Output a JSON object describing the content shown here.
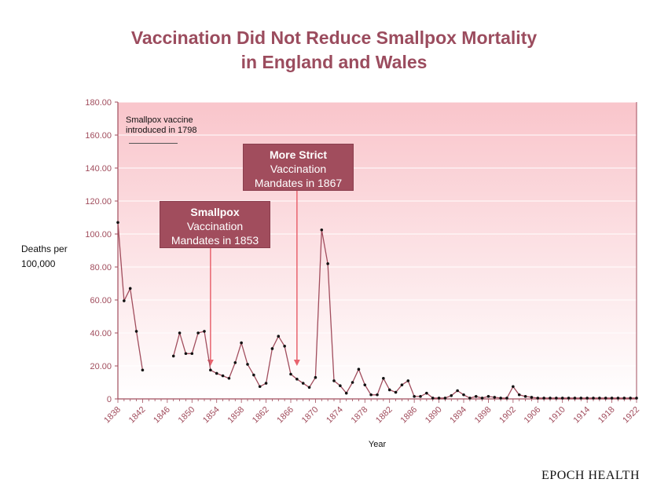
{
  "title_line1": "Vaccination Did Not Reduce Smallpox Mortality",
  "title_line2": "in England and Wales",
  "ylabel_line1": "Deaths per",
  "ylabel_line2": "100,000",
  "xlabel": "Year",
  "brand": "EPOCH HEALTH",
  "annotations": {
    "note_line1": "Smallpox vaccine",
    "note_line2": "introduced in 1798",
    "callout1_bold": "Smallpox",
    "callout1_line2": "Vaccination",
    "callout1_line3": "Mandates in 1853",
    "callout2_bold": "More Strict",
    "callout2_line2": "Vaccination",
    "callout2_line3": "Mandates in 1867"
  },
  "colors": {
    "title": "#9b4c5e",
    "line": "#a14d5d",
    "point": "#111111",
    "bg_top": "#f9c5cb",
    "bg_bottom": "#ffffff",
    "callout": "#a14d5d",
    "arrow": "#e8636e"
  },
  "chart_data": {
    "type": "line",
    "title": "Vaccination Did Not Reduce Smallpox Mortality in England and Wales",
    "xlabel": "Year",
    "ylabel": "Deaths per 100,000",
    "xlim": [
      1838,
      1922
    ],
    "ylim": [
      0,
      180
    ],
    "grid": true,
    "y_ticks": [
      "0",
      "20.00",
      "40.00",
      "60.00",
      "80.00",
      "100.00",
      "120.00",
      "140.00",
      "160.00",
      "180.00"
    ],
    "x_ticks": [
      "1838",
      "1842",
      "1846",
      "1850",
      "1854",
      "1858",
      "1862",
      "1866",
      "1870",
      "1874",
      "1878",
      "1882",
      "1886",
      "1890",
      "1894",
      "1898",
      "1902",
      "1906",
      "1910",
      "1914",
      "1918",
      "1922"
    ],
    "segments": [
      [
        [
          1838,
          107
        ],
        [
          1839,
          59.5
        ],
        [
          1840,
          67
        ],
        [
          1841,
          41
        ],
        [
          1842,
          17.5
        ]
      ],
      [
        [
          1847,
          26
        ],
        [
          1848,
          40
        ],
        [
          1849,
          27.5
        ],
        [
          1850,
          27.5
        ],
        [
          1851,
          40
        ],
        [
          1852,
          41
        ],
        [
          1853,
          17.5
        ],
        [
          1854,
          15.5
        ],
        [
          1855,
          14
        ],
        [
          1856,
          12.5
        ],
        [
          1857,
          22
        ],
        [
          1858,
          34
        ],
        [
          1859,
          21
        ],
        [
          1860,
          14.5
        ],
        [
          1861,
          7.5
        ],
        [
          1862,
          9.5
        ],
        [
          1863,
          30.5
        ],
        [
          1864,
          38
        ],
        [
          1865,
          32
        ],
        [
          1866,
          15
        ],
        [
          1867,
          12
        ],
        [
          1868,
          9.5
        ],
        [
          1869,
          7
        ],
        [
          1870,
          13
        ],
        [
          1871,
          102.5
        ],
        [
          1872,
          82
        ],
        [
          1873,
          11
        ],
        [
          1874,
          8
        ],
        [
          1875,
          3.5
        ],
        [
          1876,
          10
        ],
        [
          1877,
          18
        ],
        [
          1878,
          8.5
        ],
        [
          1879,
          2.5
        ],
        [
          1880,
          2.5
        ],
        [
          1881,
          12.5
        ],
        [
          1882,
          5.5
        ],
        [
          1883,
          4
        ],
        [
          1884,
          8.5
        ],
        [
          1885,
          11
        ],
        [
          1886,
          1.5
        ],
        [
          1887,
          1.5
        ],
        [
          1888,
          3.5
        ],
        [
          1889,
          0.5
        ],
        [
          1890,
          0.5
        ],
        [
          1891,
          0.5
        ],
        [
          1892,
          2
        ],
        [
          1893,
          5
        ],
        [
          1894,
          2.5
        ],
        [
          1895,
          0.5
        ],
        [
          1896,
          1.5
        ],
        [
          1897,
          0.5
        ],
        [
          1898,
          1.5
        ],
        [
          1899,
          1
        ],
        [
          1900,
          0.5
        ],
        [
          1901,
          0.5
        ],
        [
          1902,
          7.5
        ],
        [
          1903,
          2.5
        ],
        [
          1904,
          1.5
        ],
        [
          1905,
          1
        ],
        [
          1906,
          0.5
        ],
        [
          1907,
          0.5
        ],
        [
          1908,
          0.5
        ],
        [
          1909,
          0.5
        ],
        [
          1910,
          0.5
        ],
        [
          1911,
          0.5
        ],
        [
          1912,
          0.5
        ],
        [
          1913,
          0.5
        ],
        [
          1914,
          0.5
        ],
        [
          1915,
          0.5
        ],
        [
          1916,
          0.5
        ],
        [
          1917,
          0.5
        ],
        [
          1918,
          0.5
        ],
        [
          1919,
          0.5
        ],
        [
          1920,
          0.5
        ],
        [
          1921,
          0.5
        ],
        [
          1922,
          0.5
        ]
      ]
    ],
    "arrows": [
      {
        "x": 1853,
        "y_from": 92,
        "y_to": 20
      },
      {
        "x": 1867,
        "y_from": 127,
        "y_to": 20
      }
    ]
  }
}
